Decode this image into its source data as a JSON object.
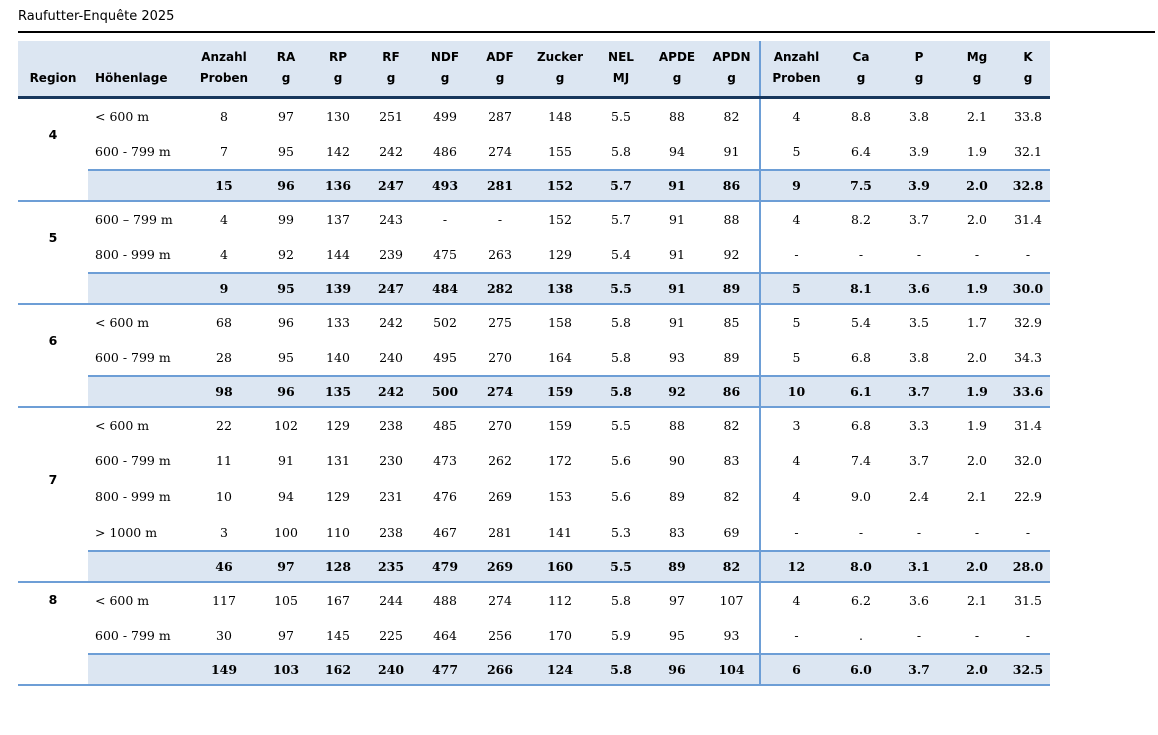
{
  "title": "Raufutter-Enquête 2025",
  "colors": {
    "header_fill": "#dce6f2",
    "total_row_fill": "#dce6f2",
    "line_blue": "#6d9ed6",
    "header_bottom_border": "#17375d",
    "title_underline": "#000000"
  },
  "table": {
    "columns": [
      {
        "label": "Region",
        "unit": ""
      },
      {
        "label": "Höhenlage",
        "unit": ""
      },
      {
        "label": "Anzahl",
        "unit": "Proben"
      },
      {
        "label": "RA",
        "unit": "g"
      },
      {
        "label": "RP",
        "unit": "g"
      },
      {
        "label": "RF",
        "unit": "g"
      },
      {
        "label": "NDF",
        "unit": "g"
      },
      {
        "label": "ADF",
        "unit": "g"
      },
      {
        "label": "Zucker",
        "unit": "g"
      },
      {
        "label": "NEL",
        "unit": "MJ"
      },
      {
        "label": "APDE",
        "unit": "g"
      },
      {
        "label": "APDN",
        "unit": "g"
      },
      {
        "label": "Anzahl",
        "unit": "Proben"
      },
      {
        "label": "Ca",
        "unit": "g"
      },
      {
        "label": "P",
        "unit": "g"
      },
      {
        "label": "Mg",
        "unit": "g"
      },
      {
        "label": "K",
        "unit": "g"
      }
    ],
    "regions": [
      {
        "region": "4",
        "rows": [
          {
            "hoehenlage": "< 600 m",
            "values": [
              "8",
              "97",
              "130",
              "251",
              "499",
              "287",
              "148",
              "5.5",
              "88",
              "82",
              "4",
              "8.8",
              "3.8",
              "2.1",
              "33.8"
            ]
          },
          {
            "hoehenlage": "600 - 799 m",
            "values": [
              "7",
              "95",
              "142",
              "242",
              "486",
              "274",
              "155",
              "5.8",
              "94",
              "91",
              "5",
              "6.4",
              "3.9",
              "1.9",
              "32.1"
            ]
          }
        ],
        "total": [
          "15",
          "96",
          "136",
          "247",
          "493",
          "281",
          "152",
          "5.7",
          "91",
          "86",
          "9",
          "7.5",
          "3.9",
          "2.0",
          "32.8"
        ]
      },
      {
        "region": "5",
        "rows": [
          {
            "hoehenlage": "600 – 799 m",
            "values": [
              "4",
              "99",
              "137",
              "243",
              "-",
              "-",
              "152",
              "5.7",
              "91",
              "88",
              "4",
              "8.2",
              "3.7",
              "2.0",
              "31.4"
            ]
          },
          {
            "hoehenlage": "800 - 999 m",
            "values": [
              "4",
              "92",
              "144",
              "239",
              "475",
              "263",
              "129",
              "5.4",
              "91",
              "92",
              "-",
              "-",
              "-",
              "-",
              "-"
            ]
          }
        ],
        "total": [
          "9",
          "95",
          "139",
          "247",
          "484",
          "282",
          "138",
          "5.5",
          "91",
          "89",
          "5",
          "8.1",
          "3.6",
          "1.9",
          "30.0"
        ]
      },
      {
        "region": "6",
        "rows": [
          {
            "hoehenlage": "< 600 m",
            "values": [
              "68",
              "96",
              "133",
              "242",
              "502",
              "275",
              "158",
              "5.8",
              "91",
              "85",
              "5",
              "5.4",
              "3.5",
              "1.7",
              "32.9"
            ]
          },
          {
            "hoehenlage": "600 - 799 m",
            "values": [
              "28",
              "95",
              "140",
              "240",
              "495",
              "270",
              "164",
              "5.8",
              "93",
              "89",
              "5",
              "6.8",
              "3.8",
              "2.0",
              "34.3"
            ]
          }
        ],
        "total": [
          "98",
          "96",
          "135",
          "242",
          "500",
          "274",
          "159",
          "5.8",
          "92",
          "86",
          "10",
          "6.1",
          "3.7",
          "1.9",
          "33.6"
        ]
      },
      {
        "region": "7",
        "rows": [
          {
            "hoehenlage": "< 600 m",
            "values": [
              "22",
              "102",
              "129",
              "238",
              "485",
              "270",
              "159",
              "5.5",
              "88",
              "82",
              "3",
              "6.8",
              "3.3",
              "1.9",
              "31.4"
            ]
          },
          {
            "hoehenlage": "600 - 799 m",
            "values": [
              "11",
              "91",
              "131",
              "230",
              "473",
              "262",
              "172",
              "5.6",
              "90",
              "83",
              "4",
              "7.4",
              "3.7",
              "2.0",
              "32.0"
            ]
          },
          {
            "hoehenlage": "800 - 999 m",
            "values": [
              "10",
              "94",
              "129",
              "231",
              "476",
              "269",
              "153",
              "5.6",
              "89",
              "82",
              "4",
              "9.0",
              "2.4",
              "2.1",
              "22.9"
            ]
          },
          {
            "hoehenlage": "> 1000 m",
            "values": [
              "3",
              "100",
              "110",
              "238",
              "467",
              "281",
              "141",
              "5.3",
              "83",
              "69",
              "-",
              "-",
              "-",
              "-",
              "-"
            ]
          }
        ],
        "total": [
          "46",
          "97",
          "128",
          "235",
          "479",
          "269",
          "160",
          "5.5",
          "89",
          "82",
          "12",
          "8.0",
          "3.1",
          "2.0",
          "28.0"
        ]
      },
      {
        "region": "8",
        "rows": [
          {
            "hoehenlage": "< 600 m",
            "values": [
              "117",
              "105",
              "167",
              "244",
              "488",
              "274",
              "112",
              "5.8",
              "97",
              "107",
              "4",
              "6.2",
              "3.6",
              "2.1",
              "31.5"
            ]
          },
          {
            "hoehenlage": "600 - 799 m",
            "values": [
              "30",
              "97",
              "145",
              "225",
              "464",
              "256",
              "170",
              "5.9",
              "95",
              "93",
              "-",
              ".",
              "-",
              "-",
              "-"
            ]
          }
        ],
        "total": [
          "149",
          "103",
          "162",
          "240",
          "477",
          "266",
          "124",
          "5.8",
          "96",
          "104",
          "6",
          "6.0",
          "3.7",
          "2.0",
          "32.5"
        ]
      }
    ]
  }
}
